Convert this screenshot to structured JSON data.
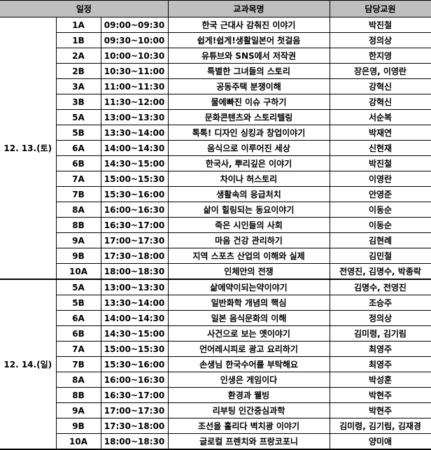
{
  "header": {
    "schedule": "일정",
    "course": "교과목명",
    "teacher": "담당교원"
  },
  "colors": {
    "header_bg": "#bfbfbf",
    "border": "#000000"
  },
  "days": [
    {
      "date": "12. 13.(토)",
      "rows": [
        {
          "code": "1A",
          "time": "09:00~09:30",
          "course": "한국 근대사 감춰진 이야기",
          "teacher": "박진철"
        },
        {
          "code": "1B",
          "time": "09:30~10:00",
          "course": "쉽게!쉽게!생활일본어 첫걸음",
          "teacher": "정의상"
        },
        {
          "code": "2A",
          "time": "10:00~10:30",
          "course": "유튜브와 SNS에서 저작권",
          "teacher": "한지영"
        },
        {
          "code": "2B",
          "time": "10:30~11:00",
          "course": "특별한 그녀들의 스토리",
          "teacher": "장은영, 이영란"
        },
        {
          "code": "3A",
          "time": "11:00~11:30",
          "course": "공동주택 분쟁이해",
          "teacher": "강혁신"
        },
        {
          "code": "3B",
          "time": "11:30~12:00",
          "course": "물에빠진 이슈 구하기",
          "teacher": "강혁신"
        },
        {
          "code": "5A",
          "time": "13:00~13:30",
          "course": "문화콘텐츠와 스토리텔링",
          "teacher": "서순복"
        },
        {
          "code": "5B",
          "time": "13:30~14:00",
          "course": "톡톡! 디자인 싱킹과 창업이야기",
          "teacher": "박재연"
        },
        {
          "code": "6A",
          "time": "14:00~14:30",
          "course": "음식으로 이루어진 세상",
          "teacher": "신현재"
        },
        {
          "code": "6B",
          "time": "14:30~15:00",
          "course": "한국사, 뿌리깊은 이야기",
          "teacher": "박진철"
        },
        {
          "code": "7A",
          "time": "15:00~15:30",
          "course": "차이나 허스토리",
          "teacher": "이영란"
        },
        {
          "code": "7B",
          "time": "15:30~16:00",
          "course": "생활속의 응급처치",
          "teacher": "안영준"
        },
        {
          "code": "8A",
          "time": "16:00~16:30",
          "course": "삶이 힐링되는 동요이야기",
          "teacher": "이동순"
        },
        {
          "code": "8B",
          "time": "16:30~17:00",
          "course": "죽은 시인들의 사회",
          "teacher": "이동순"
        },
        {
          "code": "9A",
          "time": "17:00~17:30",
          "course": "마음 건강 관리하기",
          "teacher": "김현례"
        },
        {
          "code": "9B",
          "time": "17:30~18:00",
          "course": "지역 스포츠 산업의 이해와 실제",
          "teacher": "김민철"
        },
        {
          "code": "10A",
          "time": "18:00~18:30",
          "course": "인체안의 전쟁",
          "teacher": "전영진, 김명수, 박종락"
        }
      ]
    },
    {
      "date": "12. 14.(일)",
      "rows": [
        {
          "code": "5A",
          "time": "13:00~13:30",
          "course": "삶에약이되는약이야기",
          "teacher": "김명수, 전영진"
        },
        {
          "code": "5B",
          "time": "13:30~14:00",
          "course": "일반화학 개념의 핵심",
          "teacher": "조승주"
        },
        {
          "code": "6A",
          "time": "14:00~14:30",
          "course": "일본 음식문화의 이해",
          "teacher": "정의상"
        },
        {
          "code": "6B",
          "time": "14:30~15:00",
          "course": "사건으로 보는 옛이야기",
          "teacher": "김미령, 김기림"
        },
        {
          "code": "7A",
          "time": "15:00~15:30",
          "course": "언어레시피로 광고 요리하기",
          "teacher": "최영주"
        },
        {
          "code": "7B",
          "time": "15:30~16:00",
          "course": "손생님 한국수어를 부탁해요",
          "teacher": "최영주"
        },
        {
          "code": "8A",
          "time": "16:00~16:30",
          "course": "인생은 게임이다",
          "teacher": "박성훈"
        },
        {
          "code": "8B",
          "time": "16:30~17:00",
          "course": "환경과 웰빙",
          "teacher": "박현주"
        },
        {
          "code": "9A",
          "time": "17:00~17:30",
          "course": "리부팅 인간중심과학",
          "teacher": "박현주"
        },
        {
          "code": "9B",
          "time": "17:30~18:00",
          "course": "조선을 홀리다 벽치광 이야기",
          "teacher": "김미령, 김기림, 김재경"
        },
        {
          "code": "10A",
          "time": "18:00~18:30",
          "course": "글로컬 프렌치와 프랑코포니",
          "teacher": "양미애"
        }
      ]
    }
  ]
}
